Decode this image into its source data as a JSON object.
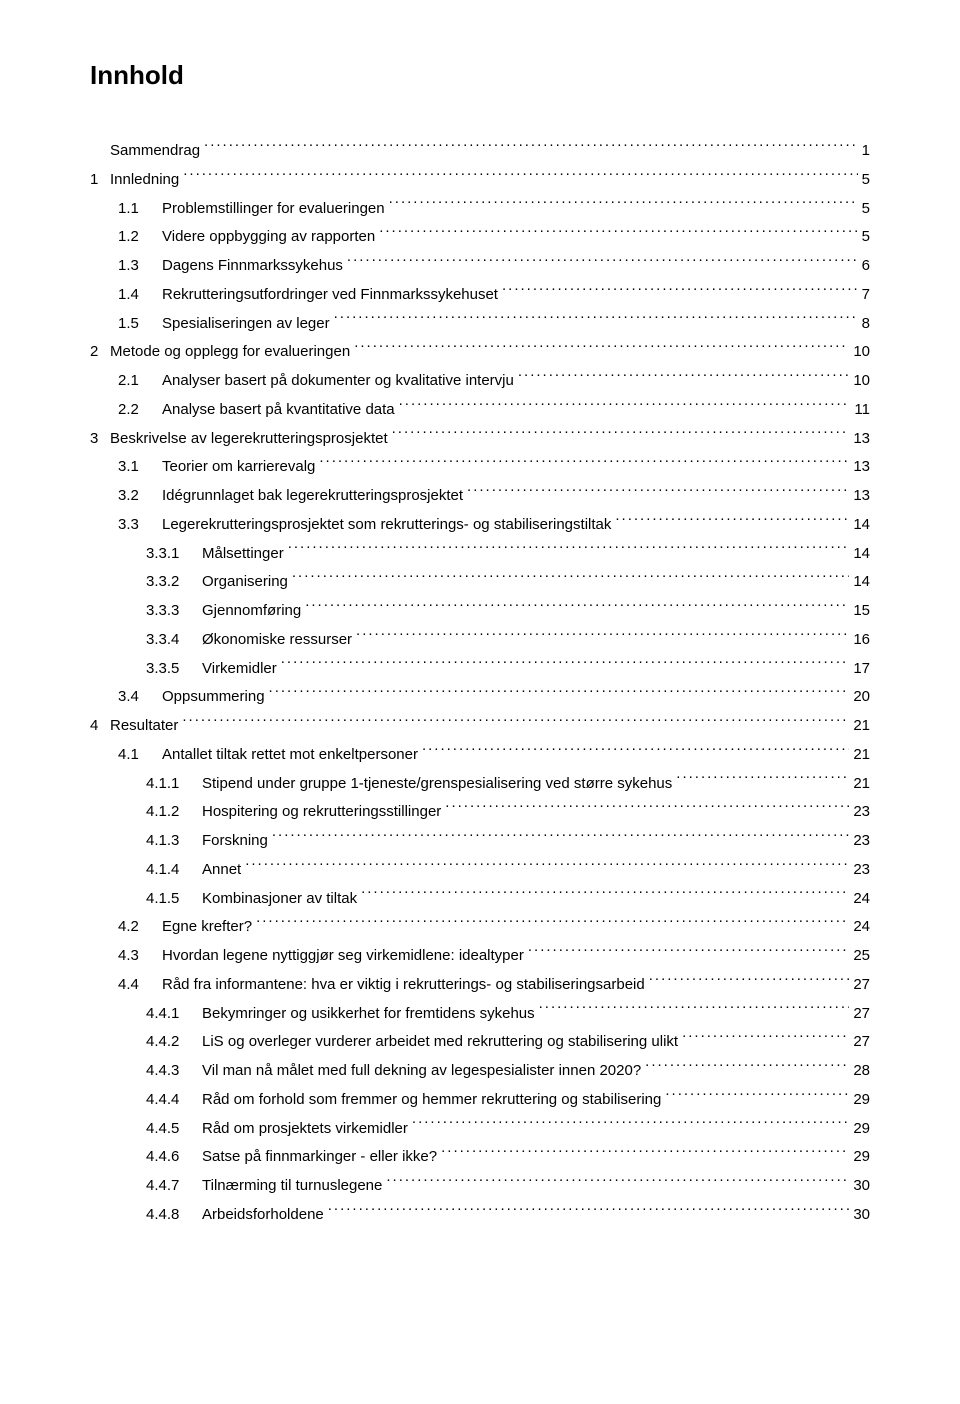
{
  "heading": "Innhold",
  "toc": [
    {
      "level": 0,
      "num": "",
      "title": "Sammendrag",
      "page": "1"
    },
    {
      "level": 0,
      "num": "1",
      "title": "Innledning",
      "page": "5"
    },
    {
      "level": 1,
      "num": "1.1",
      "title": "Problemstillinger for evalueringen",
      "page": "5"
    },
    {
      "level": 1,
      "num": "1.2",
      "title": "Videre oppbygging av rapporten",
      "page": "5"
    },
    {
      "level": 1,
      "num": "1.3",
      "title": "Dagens Finnmarkssykehus",
      "page": "6"
    },
    {
      "level": 1,
      "num": "1.4",
      "title": "Rekrutteringsutfordringer ved Finnmarkssykehuset",
      "page": "7"
    },
    {
      "level": 1,
      "num": "1.5",
      "title": "Spesialiseringen av leger",
      "page": "8"
    },
    {
      "level": 0,
      "num": "2",
      "title": "Metode og opplegg for evalueringen",
      "page": "10"
    },
    {
      "level": 1,
      "num": "2.1",
      "title": "Analyser basert på dokumenter og kvalitative intervju",
      "page": "10"
    },
    {
      "level": 1,
      "num": "2.2",
      "title": "Analyse basert på kvantitative data",
      "page": "11"
    },
    {
      "level": 0,
      "num": "3",
      "title": "Beskrivelse av legerekrutteringsprosjektet",
      "page": "13"
    },
    {
      "level": 1,
      "num": "3.1",
      "title": "Teorier om karrierevalg",
      "page": "13"
    },
    {
      "level": 1,
      "num": "3.2",
      "title": "Idégrunnlaget bak legerekrutteringsprosjektet",
      "page": "13"
    },
    {
      "level": 1,
      "num": "3.3",
      "title": "Legerekrutteringsprosjektet som rekrutterings- og stabiliseringstiltak",
      "page": "14"
    },
    {
      "level": 2,
      "num": "3.3.1",
      "title": "Målsettinger",
      "page": "14"
    },
    {
      "level": 2,
      "num": "3.3.2",
      "title": "Organisering",
      "page": "14"
    },
    {
      "level": 2,
      "num": "3.3.3",
      "title": "Gjennomføring",
      "page": "15"
    },
    {
      "level": 2,
      "num": "3.3.4",
      "title": "Økonomiske ressurser",
      "page": "16"
    },
    {
      "level": 2,
      "num": "3.3.5",
      "title": "Virkemidler",
      "page": "17"
    },
    {
      "level": 1,
      "num": "3.4",
      "title": "Oppsummering",
      "page": "20"
    },
    {
      "level": 0,
      "num": "4",
      "title": "Resultater",
      "page": "21"
    },
    {
      "level": 1,
      "num": "4.1",
      "title": "Antallet tiltak rettet mot enkeltpersoner",
      "page": "21"
    },
    {
      "level": 2,
      "num": "4.1.1",
      "title": "Stipend under gruppe 1-tjeneste/grenspesialisering ved større sykehus",
      "page": "21"
    },
    {
      "level": 2,
      "num": "4.1.2",
      "title": "Hospitering og rekrutteringsstillinger",
      "page": "23"
    },
    {
      "level": 2,
      "num": "4.1.3",
      "title": "Forskning",
      "page": "23"
    },
    {
      "level": 2,
      "num": "4.1.4",
      "title": "Annet",
      "page": "23"
    },
    {
      "level": 2,
      "num": "4.1.5",
      "title": "Kombinasjoner av tiltak",
      "page": "24"
    },
    {
      "level": 1,
      "num": "4.2",
      "title": "Egne krefter?",
      "page": "24"
    },
    {
      "level": 1,
      "num": "4.3",
      "title": "Hvordan legene nyttiggjør seg virkemidlene: idealtyper",
      "page": "25"
    },
    {
      "level": 1,
      "num": "4.4",
      "title": "Råd fra informantene: hva er viktig i rekrutterings- og stabiliseringsarbeid",
      "page": "27"
    },
    {
      "level": 2,
      "num": "4.4.1",
      "title": "Bekymringer og usikkerhet for fremtidens sykehus",
      "page": "27"
    },
    {
      "level": 2,
      "num": "4.4.2",
      "title": "LiS og overleger vurderer arbeidet med rekruttering og stabilisering ulikt",
      "page": "27"
    },
    {
      "level": 2,
      "num": "4.4.3",
      "title": "Vil man nå målet med full dekning av legespesialister innen 2020?",
      "page": "28"
    },
    {
      "level": 2,
      "num": "4.4.4",
      "title": "Råd om forhold som fremmer og hemmer rekruttering og stabilisering",
      "page": "29"
    },
    {
      "level": 2,
      "num": "4.4.5",
      "title": "Råd om prosjektets virkemidler",
      "page": "29"
    },
    {
      "level": 2,
      "num": "4.4.6",
      "title": "Satse på finnmarkinger - eller ikke?",
      "page": "29"
    },
    {
      "level": 2,
      "num": "4.4.7",
      "title": "Tilnærming til turnuslegene",
      "page": "30"
    },
    {
      "level": 2,
      "num": "4.4.8",
      "title": "Arbeidsforholdene",
      "page": "30"
    }
  ]
}
